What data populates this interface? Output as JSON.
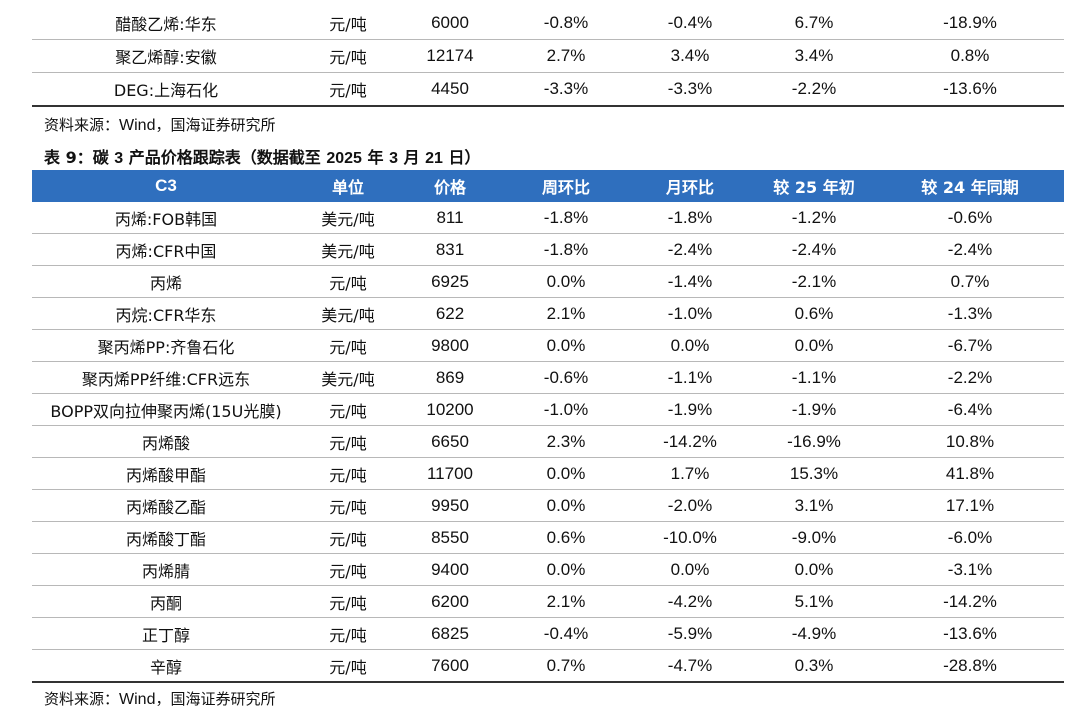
{
  "top_table": {
    "rows": [
      [
        "醋酸乙烯:华东",
        "元/吨",
        "6000",
        "-0.8%",
        "-0.4%",
        "6.7%",
        "-18.9%"
      ],
      [
        "聚乙烯醇:安徽",
        "元/吨",
        "12174",
        "2.7%",
        "3.4%",
        "3.4%",
        "0.8%"
      ],
      [
        "DEG:上海石化",
        "元/吨",
        "4450",
        "-3.3%",
        "-3.3%",
        "-2.2%",
        "-13.6%"
      ]
    ]
  },
  "source_1": {
    "prefix": "资料来源：",
    "wind": "Wind",
    "suffix": "，国海证券研究所"
  },
  "caption": {
    "p1": "表 9：碳 ",
    "n1": "3",
    "p2": " 产品价格跟踪表（数据截至 ",
    "n2": "2025",
    "p3": " 年 ",
    "n3": "3",
    "p4": " 月 ",
    "n4": "21",
    "p5": " 日）"
  },
  "main_table": {
    "headers": [
      "C3",
      "单位",
      "价格",
      "周环比",
      "月环比",
      "较 25 年初",
      "较 24 年同期"
    ],
    "rows": [
      [
        "丙烯:FOB韩国",
        "美元/吨",
        "811",
        "-1.8%",
        "-1.8%",
        "-1.2%",
        "-0.6%"
      ],
      [
        "丙烯:CFR中国",
        "美元/吨",
        "831",
        "-1.8%",
        "-2.4%",
        "-2.4%",
        "-2.4%"
      ],
      [
        "丙烯",
        "元/吨",
        "6925",
        "0.0%",
        "-1.4%",
        "-2.1%",
        "0.7%"
      ],
      [
        "丙烷:CFR华东",
        "美元/吨",
        "622",
        "2.1%",
        "-1.0%",
        "0.6%",
        "-1.3%"
      ],
      [
        "聚丙烯PP:齐鲁石化",
        "元/吨",
        "9800",
        "0.0%",
        "0.0%",
        "0.0%",
        "-6.7%"
      ],
      [
        "聚丙烯PP纤维:CFR远东",
        "美元/吨",
        "869",
        "-0.6%",
        "-1.1%",
        "-1.1%",
        "-2.2%"
      ],
      [
        "BOPP双向拉伸聚丙烯(15U光膜)",
        "元/吨",
        "10200",
        "-1.0%",
        "-1.9%",
        "-1.9%",
        "-6.4%"
      ],
      [
        "丙烯酸",
        "元/吨",
        "6650",
        "2.3%",
        "-14.2%",
        "-16.9%",
        "10.8%"
      ],
      [
        "丙烯酸甲酯",
        "元/吨",
        "11700",
        "0.0%",
        "1.7%",
        "15.3%",
        "41.8%"
      ],
      [
        "丙烯酸乙酯",
        "元/吨",
        "9950",
        "0.0%",
        "-2.0%",
        "3.1%",
        "17.1%"
      ],
      [
        "丙烯酸丁酯",
        "元/吨",
        "8550",
        "0.6%",
        "-10.0%",
        "-9.0%",
        "-6.0%"
      ],
      [
        "丙烯腈",
        "元/吨",
        "9400",
        "0.0%",
        "0.0%",
        "0.0%",
        "-3.1%"
      ],
      [
        "丙酮",
        "元/吨",
        "6200",
        "2.1%",
        "-4.2%",
        "5.1%",
        "-14.2%"
      ],
      [
        "正丁醇",
        "元/吨",
        "6825",
        "-0.4%",
        "-5.9%",
        "-4.9%",
        "-13.6%"
      ],
      [
        "辛醇",
        "元/吨",
        "7600",
        "0.7%",
        "-4.7%",
        "0.3%",
        "-28.8%"
      ]
    ]
  },
  "source_2": {
    "prefix": "资料来源：",
    "wind": "Wind",
    "suffix": "，国海证券研究所"
  }
}
